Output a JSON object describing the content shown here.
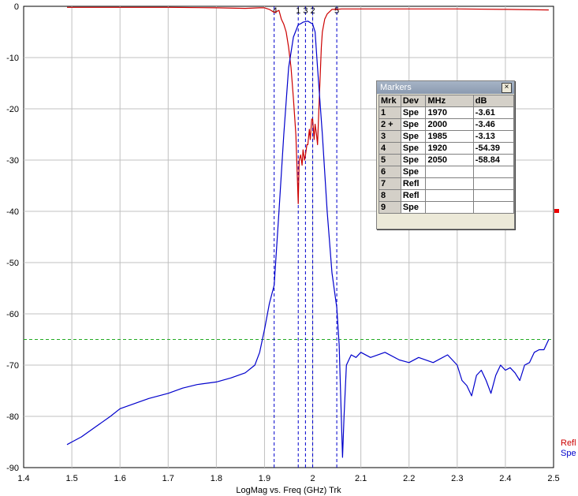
{
  "chart_data": {
    "type": "line",
    "xlabel": "LogMag vs. Freq (GHz)  Trk",
    "xlim": [
      1.4,
      2.5
    ],
    "ylim": [
      -90,
      0
    ],
    "x_ticks": [
      "1.4",
      "1.5",
      "1.6",
      "1.7",
      "1.8",
      "1.9",
      "2",
      "2.1",
      "2.2",
      "2.3",
      "2.4",
      "2.5"
    ],
    "y_ticks": [
      "0",
      "-10",
      "-20",
      "-30",
      "-40",
      "-50",
      "-60",
      "-70",
      "-80",
      "-90"
    ],
    "grid": true,
    "legend_placement": "bottom-right",
    "reference_line": {
      "y": -65,
      "color": "#22aa22"
    },
    "marker_lines_ghz": [
      1.92,
      1.97,
      1.985,
      2.0,
      2.05
    ],
    "marker_tags": [
      "4",
      "1",
      "3",
      "2",
      "5"
    ],
    "series": [
      {
        "name": "Refl",
        "color": "#cc0000",
        "x": [
          1.49,
          1.6,
          1.7,
          1.8,
          1.86,
          1.89,
          1.9,
          1.91,
          1.92,
          1.93,
          1.935,
          1.94,
          1.945,
          1.95,
          1.955,
          1.96,
          1.965,
          1.968,
          1.97,
          1.972,
          1.975,
          1.978,
          1.98,
          1.983,
          1.985,
          1.988,
          1.99,
          1.993,
          1.995,
          1.998,
          2.0,
          2.003,
          2.005,
          2.008,
          2.01,
          2.012,
          2.015,
          2.018,
          2.02,
          2.025,
          2.03,
          2.04,
          2.05,
          2.06,
          2.1,
          2.2,
          2.3,
          2.4,
          2.49
        ],
        "y": [
          -0.2,
          -0.2,
          -0.2,
          -0.3,
          -0.4,
          -0.3,
          -0.3,
          -0.6,
          -1.2,
          -0.8,
          -2.5,
          -3.5,
          -5,
          -8,
          -12,
          -18,
          -25,
          -33,
          -38.5,
          -30,
          -29,
          -31,
          -28,
          -30,
          -29,
          -27,
          -27,
          -24,
          -26,
          -22,
          -22,
          -26,
          -23,
          -25,
          -27,
          -22,
          -15,
          -8,
          -5,
          -2.5,
          -1.5,
          -0.6,
          -0.6,
          -0.5,
          -0.5,
          -0.5,
          -0.5,
          -0.6,
          -0.7
        ]
      },
      {
        "name": "Spe",
        "color": "#0000cc",
        "x": [
          1.49,
          1.5,
          1.52,
          1.55,
          1.58,
          1.6,
          1.63,
          1.66,
          1.7,
          1.73,
          1.76,
          1.8,
          1.83,
          1.86,
          1.88,
          1.89,
          1.9,
          1.91,
          1.92,
          1.93,
          1.94,
          1.95,
          1.96,
          1.97,
          1.975,
          1.98,
          1.99,
          2.0,
          2.005,
          2.01,
          2.02,
          2.03,
          2.04,
          2.05,
          2.055,
          2.06,
          2.062,
          2.065,
          2.07,
          2.08,
          2.09,
          2.1,
          2.12,
          2.15,
          2.18,
          2.2,
          2.22,
          2.25,
          2.28,
          2.3,
          2.31,
          2.32,
          2.33,
          2.34,
          2.35,
          2.36,
          2.37,
          2.38,
          2.39,
          2.4,
          2.41,
          2.42,
          2.43,
          2.44,
          2.45,
          2.46,
          2.47,
          2.48,
          2.49
        ],
        "y": [
          -85.5,
          -85,
          -84,
          -82,
          -80,
          -78.5,
          -77.5,
          -76.5,
          -75.5,
          -74.5,
          -73.8,
          -73.3,
          -72.5,
          -71.5,
          -70,
          -67.5,
          -63,
          -58,
          -54.4,
          -40,
          -25,
          -12,
          -6,
          -3.6,
          -3.4,
          -3.1,
          -2.9,
          -3.46,
          -5,
          -12,
          -25,
          -40,
          -52,
          -58.8,
          -66,
          -82,
          -88,
          -80,
          -70,
          -68,
          -68.5,
          -67.5,
          -68.5,
          -67.5,
          -69,
          -69.5,
          -68.5,
          -69.5,
          -68,
          -70,
          -73,
          -74,
          -76,
          -72,
          -71,
          -73,
          -75.5,
          -72,
          -70,
          -71,
          -70.5,
          -71.5,
          -73,
          -70,
          -69.5,
          -67.5,
          -67,
          -67,
          -65
        ]
      }
    ],
    "markers_table": {
      "title": "Markers",
      "headers": [
        "Mrk",
        "Dev",
        "MHz",
        "dB"
      ],
      "rows": [
        {
          "mrk": "1",
          "dev": "Spe",
          "mhz": "1970",
          "db": "-3.61"
        },
        {
          "mrk": "2 +",
          "dev": "Spe",
          "mhz": "2000",
          "db": "-3.46"
        },
        {
          "mrk": "3",
          "dev": "Spe",
          "mhz": "1985",
          "db": "-3.13"
        },
        {
          "mrk": "4",
          "dev": "Spe",
          "mhz": "1920",
          "db": "-54.39"
        },
        {
          "mrk": "5",
          "dev": "Spe",
          "mhz": "2050",
          "db": "-58.84"
        },
        {
          "mrk": "6",
          "dev": "Spe",
          "mhz": "",
          "db": ""
        },
        {
          "mrk": "7",
          "dev": "Refl",
          "mhz": "",
          "db": ""
        },
        {
          "mrk": "8",
          "dev": "Refl",
          "mhz": "",
          "db": ""
        },
        {
          "mrk": "9",
          "dev": "Spe",
          "mhz": "",
          "db": ""
        }
      ]
    }
  }
}
